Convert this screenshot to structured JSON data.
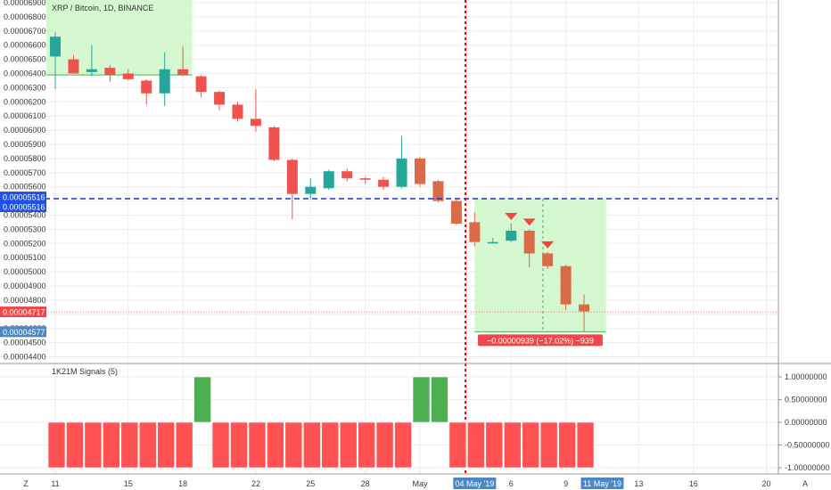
{
  "chart_data": {
    "type": "candlestick",
    "symbol_title": "XRP / Bitcoin, 1D, BINANCE",
    "y_tick_labels": [
      "0.00006900",
      "0.00006800",
      "0.00006700",
      "0.00006600",
      "0.00006500",
      "0.00006400",
      "0.00006300",
      "0.00006200",
      "0.00006100",
      "0.00006000",
      "0.00005900",
      "0.00005800",
      "0.00005700",
      "0.00005600",
      "0.00005500",
      "0.00005400",
      "0.00005300",
      "0.00005200",
      "0.00005100",
      "0.00005000",
      "0.00004900",
      "0.00004800",
      "0.00004700",
      "0.00004600",
      "0.00004500",
      "0.00004400"
    ],
    "ylim": [
      4.38e-05,
      6.92e-05
    ],
    "x_tick_labels": [
      {
        "label": "11",
        "day": 0
      },
      {
        "label": "15",
        "day": 4
      },
      {
        "label": "18",
        "day": 7
      },
      {
        "label": "22",
        "day": 11
      },
      {
        "label": "25",
        "day": 14
      },
      {
        "label": "28",
        "day": 17
      },
      {
        "label": "May",
        "day": 20
      },
      {
        "label": "6",
        "day": 25
      },
      {
        "label": "9",
        "day": 28
      },
      {
        "label": "13",
        "day": 32
      },
      {
        "label": "16",
        "day": 35
      },
      {
        "label": "20",
        "day": 39
      }
    ],
    "candles": [
      {
        "o": 6.52e-05,
        "h": 6.69e-05,
        "l": 6.29e-05,
        "c": 6.66e-05
      },
      {
        "o": 6.5e-05,
        "h": 6.53e-05,
        "l": 6.4e-05,
        "c": 6.4e-05
      },
      {
        "o": 6.41e-05,
        "h": 6.6e-05,
        "l": 6.38e-05,
        "c": 6.43e-05
      },
      {
        "o": 6.44e-05,
        "h": 6.46e-05,
        "l": 6.34e-05,
        "c": 6.39e-05
      },
      {
        "o": 6.4e-05,
        "h": 6.43e-05,
        "l": 6.35e-05,
        "c": 6.36e-05
      },
      {
        "o": 6.35e-05,
        "h": 6.36e-05,
        "l": 6.18e-05,
        "c": 6.26e-05
      },
      {
        "o": 6.26e-05,
        "h": 6.55e-05,
        "l": 6.17e-05,
        "c": 6.43e-05
      },
      {
        "o": 6.43e-05,
        "h": 6.59e-05,
        "l": 6.38e-05,
        "c": 6.39e-05
      },
      {
        "o": 6.38e-05,
        "h": 6.39e-05,
        "l": 6.23e-05,
        "c": 6.27e-05
      },
      {
        "o": 6.27e-05,
        "h": 6.28e-05,
        "l": 6.14e-05,
        "c": 6.18e-05
      },
      {
        "o": 6.18e-05,
        "h": 6.2e-05,
        "l": 6.06e-05,
        "c": 6.08e-05
      },
      {
        "o": 6.08e-05,
        "h": 6.29e-05,
        "l": 5.99e-05,
        "c": 6.03e-05
      },
      {
        "o": 6.02e-05,
        "h": 6.03e-05,
        "l": 5.78e-05,
        "c": 5.79e-05
      },
      {
        "o": 5.79e-05,
        "h": 5.8e-05,
        "l": 5.37e-05,
        "c": 5.55e-05
      },
      {
        "o": 5.55e-05,
        "h": 5.66e-05,
        "l": 5.51e-05,
        "c": 5.6e-05
      },
      {
        "o": 5.59e-05,
        "h": 5.72e-05,
        "l": 5.58e-05,
        "c": 5.71e-05
      },
      {
        "o": 5.71e-05,
        "h": 5.73e-05,
        "l": 5.64e-05,
        "c": 5.66e-05
      },
      {
        "o": 5.66e-05,
        "h": 5.67e-05,
        "l": 5.62e-05,
        "c": 5.65e-05
      },
      {
        "o": 5.65e-05,
        "h": 5.67e-05,
        "l": 5.58e-05,
        "c": 5.6e-05
      },
      {
        "o": 5.6e-05,
        "h": 5.96e-05,
        "l": 5.59e-05,
        "c": 5.8e-05
      },
      {
        "o": 5.8e-05,
        "h": 5.81e-05,
        "l": 5.6e-05,
        "c": 5.62e-05
      },
      {
        "o": 5.64e-05,
        "h": 5.65e-05,
        "l": 5.49e-05,
        "c": 5.5e-05
      },
      {
        "o": 5.5e-05,
        "h": 5.52e-05,
        "l": 5.33e-05,
        "c": 5.34e-05
      },
      {
        "o": 5.35e-05,
        "h": 5.42e-05,
        "l": 5.18e-05,
        "c": 5.21e-05
      },
      {
        "o": 5.21e-05,
        "h": 5.24e-05,
        "l": 5.2e-05,
        "c": 5.21e-05
      },
      {
        "o": 5.22e-05,
        "h": 5.34e-05,
        "l": 5.21e-05,
        "c": 5.29e-05
      },
      {
        "o": 5.29e-05,
        "h": 5.3e-05,
        "l": 5.03e-05,
        "c": 5.13e-05
      },
      {
        "o": 5.13e-05,
        "h": 5.14e-05,
        "l": 5.02e-05,
        "c": 5.04e-05
      },
      {
        "o": 5.04e-05,
        "h": 5.05e-05,
        "l": 4.73e-05,
        "c": 4.77e-05
      },
      {
        "o": 4.77e-05,
        "h": 4.84e-05,
        "l": 4.58e-05,
        "c": 4.72e-05
      }
    ],
    "annotations": {
      "dotted_vline_day": 22.5,
      "dashed_hline_value": 5.516e-05,
      "dashed_hline_label": "0.00005516",
      "price_tag_upper_label": "0.00005516",
      "last_price_value": 4.717e-05,
      "last_price_label": "0.00004717",
      "low_tag_value": 4.577e-05,
      "low_tag_label": "0.00004577",
      "sell_marker_days": [
        25,
        26,
        27
      ],
      "range_boxes": [
        {
          "day_from": -0.5,
          "day_to": 7.5,
          "y_from": 6.39e-05,
          "y_to": 6.92e-05
        },
        {
          "day_from": 23,
          "day_to": 30.2,
          "y_from": 4.577e-05,
          "y_to": 5.516e-05
        }
      ],
      "range_measure_label": "−0.00000939 (−17.02%) −939",
      "range_mid_day": 26.6
    },
    "x_range_labels": {
      "start": "04 May '19",
      "start_day": 23,
      "end": "11 May '19",
      "end_day": 30
    }
  },
  "indicator": {
    "title": "1K21M Signals (5)",
    "y_tick_labels": [
      "1.00000000",
      "0.50000000",
      "0.00000000",
      "-0.50000000",
      "-1.00000000"
    ],
    "ylim": [
      -1.05,
      1.05
    ],
    "values": [
      -1,
      -1,
      -1,
      -1,
      -1,
      -1,
      -1,
      -1,
      1,
      -1,
      -1,
      -1,
      -1,
      -1,
      -1,
      -1,
      -1,
      -1,
      -1,
      -1,
      1,
      1,
      -1,
      -1,
      -1,
      -1,
      -1,
      -1,
      -1,
      -1
    ]
  },
  "toolbar": {
    "left_icon": "Z",
    "right_icon": "A"
  },
  "colors": {
    "up": "#26a69a",
    "down": "#ef5350",
    "down_body": "#d96a4a",
    "signal_up": "#4caf50",
    "signal_down": "#ff5252",
    "box_fill": "#c8f5c0",
    "dashed_blue": "#1c2fd6",
    "dotted_red": "#d50000",
    "tag_blue": "#1e53e5",
    "tag_red": "#f0484a",
    "tag_lightblue": "#4b87c4"
  }
}
